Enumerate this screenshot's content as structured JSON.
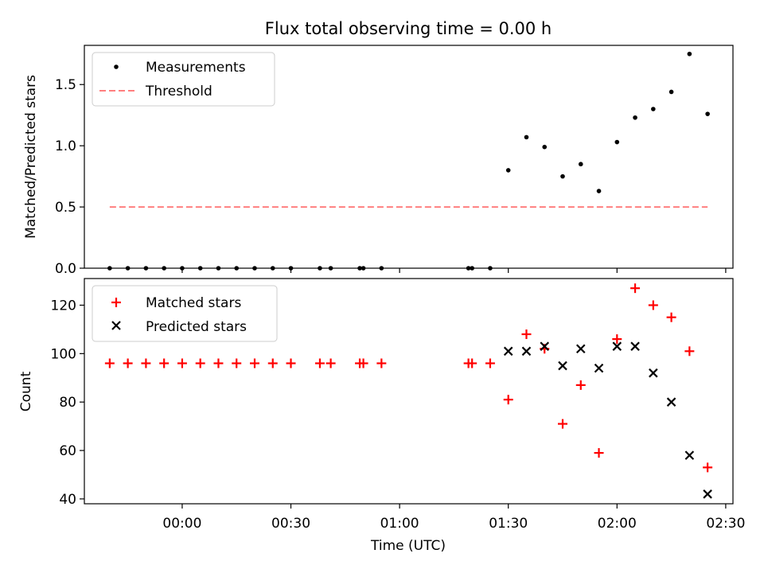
{
  "chart_data": [
    {
      "type": "scatter",
      "title": "Flux total observing time = 0.00 h",
      "xlabel": "",
      "ylabel": "Matched/Predicted stars",
      "ylim": [
        0,
        1.82
      ],
      "yticks": [
        "0.0",
        "0.5",
        "1.0",
        "1.5"
      ],
      "xticks_shown": false,
      "legend": {
        "placement": "top-left",
        "entries": [
          "Measurements",
          "Threshold"
        ]
      },
      "series": [
        {
          "name": "Measurements",
          "marker": "dot",
          "color": "#000000",
          "x": [
            "23:40",
            "23:45",
            "23:50",
            "23:55",
            "00:00",
            "00:05",
            "00:10",
            "00:15",
            "00:20",
            "00:25",
            "00:30",
            "00:38",
            "00:41",
            "00:49",
            "00:50",
            "00:55",
            "01:19",
            "01:20",
            "01:25",
            "01:30",
            "01:35",
            "01:40",
            "01:45",
            "01:50",
            "01:55",
            "02:00",
            "02:05",
            "02:10",
            "02:15",
            "02:20",
            "02:25"
          ],
          "y": [
            0,
            0,
            0,
            0,
            0,
            0,
            0,
            0,
            0,
            0,
            0,
            0,
            0,
            0,
            0,
            0,
            0,
            0,
            0,
            0.8,
            1.07,
            0.99,
            0.75,
            0.85,
            0.63,
            1.03,
            1.23,
            1.3,
            1.44,
            1.75,
            1.26
          ]
        },
        {
          "name": "Threshold",
          "style": "dashed",
          "color": "#ff7f7f",
          "x": [
            "23:40",
            "02:25"
          ],
          "y": [
            0.5,
            0.5
          ]
        }
      ]
    },
    {
      "type": "scatter",
      "title": "",
      "xlabel": "Time (UTC)",
      "ylabel": "Count",
      "ylim": [
        38,
        131
      ],
      "yticks": [
        "40",
        "60",
        "80",
        "100",
        "120"
      ],
      "xticks": [
        "00:00",
        "00:30",
        "01:00",
        "01:30",
        "02:00",
        "02:30"
      ],
      "xlim": [
        "23:33",
        "02:32"
      ],
      "legend": {
        "placement": "top-left",
        "entries": [
          "Matched stars",
          "Predicted stars"
        ]
      },
      "series": [
        {
          "name": "Matched stars",
          "marker": "plus",
          "color": "#ff0000",
          "x": [
            "23:40",
            "23:45",
            "23:50",
            "23:55",
            "00:00",
            "00:05",
            "00:10",
            "00:15",
            "00:20",
            "00:25",
            "00:30",
            "00:38",
            "00:41",
            "00:49",
            "00:50",
            "00:55",
            "01:19",
            "01:20",
            "01:25",
            "01:30",
            "01:35",
            "01:40",
            "01:45",
            "01:50",
            "01:55",
            "02:00",
            "02:05",
            "02:10",
            "02:15",
            "02:20",
            "02:25"
          ],
          "y": [
            96,
            96,
            96,
            96,
            96,
            96,
            96,
            96,
            96,
            96,
            96,
            96,
            96,
            96,
            96,
            96,
            96,
            96,
            96,
            81,
            108,
            102,
            71,
            87,
            59,
            106,
            127,
            120,
            115,
            101,
            53
          ]
        },
        {
          "name": "Predicted stars",
          "marker": "x",
          "color": "#000000",
          "x": [
            "01:30",
            "01:35",
            "01:40",
            "01:45",
            "01:50",
            "01:55",
            "02:00",
            "02:05",
            "02:10",
            "02:15",
            "02:20",
            "02:25"
          ],
          "y": [
            101,
            101,
            103,
            95,
            102,
            94,
            103,
            103,
            92,
            80,
            58,
            42
          ]
        }
      ]
    }
  ]
}
